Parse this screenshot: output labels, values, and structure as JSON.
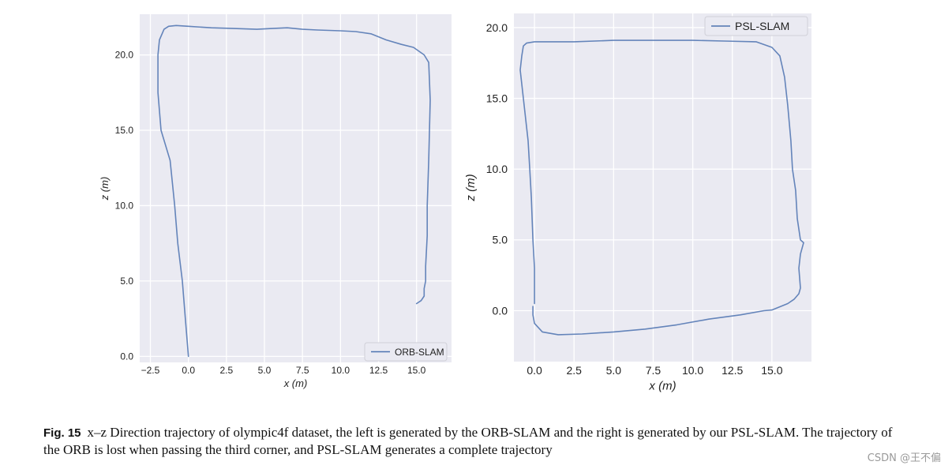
{
  "caption": {
    "label": "Fig. 15",
    "text": "x–z Direction trajectory of olympic4f dataset, the left is generated by the ORB-SLAM and the right is generated by our PSL-SLAM. The trajectory of the ORB is lost when passing the third corner, and PSL-SLAM generates a complete trajectory"
  },
  "watermark": "CSDN @王不偏",
  "colors": {
    "panel_bg": "#eaeaf2",
    "grid": "#ffffff",
    "line": "#4c72b0"
  },
  "chart_data": [
    {
      "type": "line",
      "title": "",
      "xlabel": "x (m)",
      "ylabel": "z (m)",
      "xlim": [
        -3.2,
        17.3
      ],
      "ylim": [
        -0.4,
        22.7
      ],
      "xticks": [
        -2.5,
        0.0,
        2.5,
        5.0,
        7.5,
        10.0,
        12.5,
        15.0
      ],
      "xtick_labels": [
        "−2.5",
        "0.0",
        "2.5",
        "5.0",
        "7.5",
        "10.0",
        "12.5",
        "15.0"
      ],
      "yticks": [
        0.0,
        5.0,
        10.0,
        15.0,
        20.0
      ],
      "ytick_labels": [
        "0.0",
        "5.0",
        "10.0",
        "15.0",
        "20.0"
      ],
      "grid": true,
      "legend_position": "lower-right",
      "series": [
        {
          "name": "ORB-SLAM",
          "x": [
            0.0,
            -0.2,
            -0.4,
            -0.7,
            -0.9,
            -1.2,
            -1.8,
            -2.0,
            -2.0,
            -1.9,
            -1.6,
            -1.3,
            -0.8,
            0.0,
            1.5,
            3.0,
            4.5,
            5.5,
            6.5,
            7.5,
            8.5,
            10.0,
            11.0,
            12.0,
            13.0,
            14.0,
            14.8,
            15.5,
            15.8,
            15.9,
            15.8,
            15.7,
            15.7,
            15.6,
            15.6,
            15.5,
            15.5,
            15.3,
            15.0
          ],
          "y": [
            0.0,
            2.5,
            5.0,
            7.5,
            10.0,
            13.0,
            15.0,
            17.5,
            20.0,
            21.0,
            21.7,
            21.9,
            21.95,
            21.9,
            21.8,
            21.75,
            21.7,
            21.75,
            21.8,
            21.7,
            21.65,
            21.6,
            21.55,
            21.4,
            21.0,
            20.7,
            20.5,
            20.0,
            19.5,
            17.0,
            13.0,
            10.0,
            8.0,
            6.0,
            5.0,
            4.5,
            4.0,
            3.7,
            3.5
          ]
        }
      ]
    },
    {
      "type": "line",
      "title": "",
      "xlabel": "x (m)",
      "ylabel": "z (m)",
      "xlim": [
        -1.3,
        17.5
      ],
      "ylim": [
        -3.6,
        21.0
      ],
      "xticks": [
        0.0,
        2.5,
        5.0,
        7.5,
        10.0,
        12.5,
        15.0
      ],
      "xtick_labels": [
        "0.0",
        "2.5",
        "5.0",
        "7.5",
        "10.0",
        "12.5",
        "15.0"
      ],
      "yticks": [
        0.0,
        5.0,
        10.0,
        15.0,
        20.0
      ],
      "ytick_labels": [
        "0.0",
        "5.0",
        "10.0",
        "15.0",
        "20.0"
      ],
      "grid": true,
      "legend_position": "upper-right",
      "series": [
        {
          "name": "PSL-SLAM",
          "x": [
            0.0,
            0.0,
            -0.1,
            -0.2,
            -0.3,
            -0.4,
            -0.6,
            -0.8,
            -0.9,
            -0.8,
            -0.7,
            -0.5,
            0.0,
            2.5,
            5.0,
            7.5,
            10.0,
            12.0,
            14.0,
            15.0,
            15.5,
            15.8,
            16.0,
            16.2,
            16.3,
            16.5,
            16.6,
            16.8,
            17.0,
            16.8,
            16.7,
            16.8,
            16.7,
            16.4,
            16.0,
            15.0,
            14.5,
            13.0,
            11.0,
            9.0,
            7.0,
            5.0,
            3.0,
            1.5,
            0.5,
            0.0,
            -0.1,
            -0.1
          ],
          "y": [
            0.5,
            3.0,
            5.0,
            8.0,
            10.0,
            12.0,
            14.0,
            16.0,
            17.0,
            18.0,
            18.7,
            18.9,
            19.0,
            19.0,
            19.1,
            19.1,
            19.1,
            19.05,
            19.0,
            18.6,
            18.0,
            16.5,
            14.5,
            12.0,
            10.0,
            8.5,
            6.5,
            5.0,
            4.8,
            4.0,
            3.0,
            1.6,
            1.2,
            0.8,
            0.5,
            0.05,
            0.0,
            -0.3,
            -0.6,
            -1.0,
            -1.3,
            -1.5,
            -1.65,
            -1.7,
            -1.5,
            -0.9,
            -0.3,
            0.3
          ]
        }
      ]
    }
  ]
}
